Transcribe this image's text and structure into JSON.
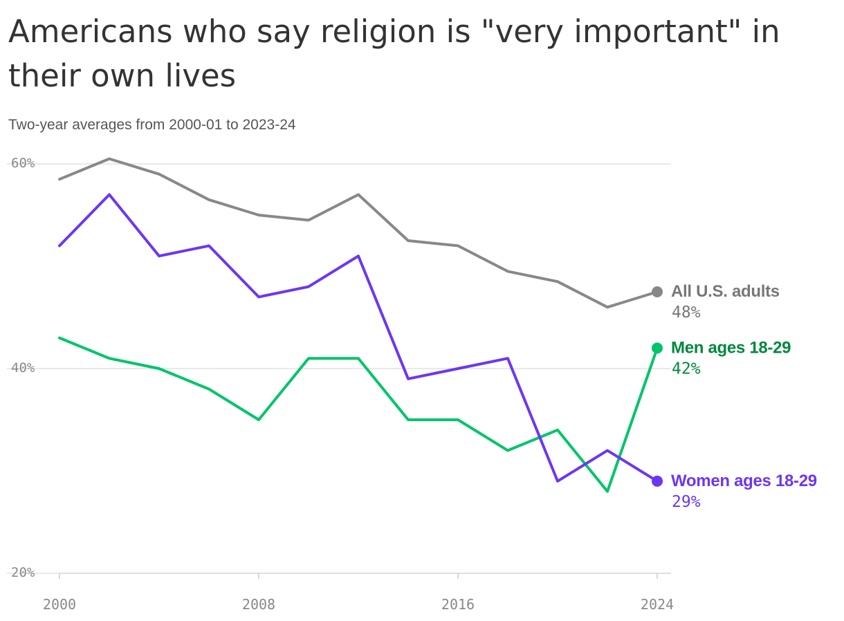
{
  "title": "Americans who say religion is \"very important\" in their own lives",
  "subtitle": "Two-year averages from 2000-01 to 2023-24",
  "chart_data": {
    "type": "line",
    "title": "Americans who say religion is \"very important\" in their own lives",
    "subtitle": "Two-year averages from 2000-01 to 2023-24",
    "xlabel": "",
    "ylabel": "",
    "x": [
      2000,
      2002,
      2004,
      2006,
      2008,
      2010,
      2012,
      2014,
      2016,
      2018,
      2020,
      2022,
      2024
    ],
    "xlim": [
      2000,
      2024
    ],
    "ylim": [
      20,
      60
    ],
    "x_ticks": [
      2000,
      2008,
      2016,
      2024
    ],
    "x_tick_labels": [
      "2000",
      "2008",
      "2016",
      "2024"
    ],
    "y_ticks": [
      20,
      40,
      60
    ],
    "y_tick_labels": [
      "20%",
      "40%",
      "60%"
    ],
    "grid": "horizontal",
    "legend": "end-of-line labels",
    "series": [
      {
        "name": "All U.S. adults",
        "end_label": "48%",
        "color": "#888888",
        "label_color": "#777777",
        "values": [
          58.5,
          60.5,
          59,
          56.5,
          55,
          54.5,
          57,
          52.5,
          52,
          49.5,
          48.5,
          46,
          47.5
        ]
      },
      {
        "name": "Men ages 18-29",
        "end_label": "42%",
        "color": "#00c46b",
        "label_color": "#00873f",
        "values": [
          43,
          41,
          40,
          38,
          35,
          41,
          41,
          35,
          35,
          32,
          34,
          28,
          42
        ]
      },
      {
        "name": "Women ages 18-29",
        "end_label": "29%",
        "color": "#6c36f5",
        "label_color": "#6c36f5",
        "values": [
          52,
          57,
          51,
          52,
          47,
          48,
          51,
          39,
          40,
          41,
          29,
          32,
          29
        ]
      }
    ]
  }
}
